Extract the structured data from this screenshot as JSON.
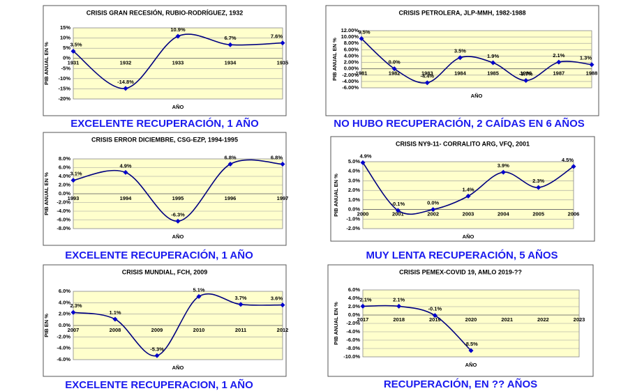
{
  "chart_data": [
    {
      "type": "line",
      "title": "CRISIS GRAN RECESIÓN, RUBIO-RODRÍGUEZ, 1932",
      "ylabel": "PIB ANUAL EN %",
      "xlabel": "AÑO",
      "categories": [
        "1931",
        "1932",
        "1933",
        "1934",
        "1935"
      ],
      "values": [
        3.5,
        -14.8,
        10.9,
        6.7,
        7.6
      ],
      "value_labels": [
        "3.5%",
        "-14.8%",
        "10.9%",
        "6.7%",
        "7.6%"
      ],
      "color": "#000080",
      "background": "#ffffcc",
      "grid": true,
      "ylim": [
        -20,
        15
      ],
      "yticks": [
        {
          "value": 15,
          "label": "15%"
        },
        {
          "value": 10,
          "label": "10%"
        },
        {
          "value": 5,
          "label": "5%"
        },
        {
          "value": 0,
          "label": "0%"
        },
        {
          "value": -5,
          "label": "-5%"
        },
        {
          "value": -10,
          "label": "-10%"
        },
        {
          "value": -15,
          "label": "-15%"
        },
        {
          "value": -20,
          "label": "-20%"
        }
      ],
      "caption": "EXCELENTE RECUPERACIÓN, 1 AÑO"
    },
    {
      "type": "line",
      "title": "CRISIS PETROLERA, JLP-MMH, 1982-1988",
      "ylabel": "PIB ANUAL EN %",
      "xlabel": "AÑO",
      "categories": [
        "1981",
        "1982",
        "1983",
        "1984",
        "1985",
        "1986",
        "1987",
        "1988"
      ],
      "values": [
        9.5,
        0.0,
        -4.4,
        3.5,
        1.9,
        -3.7,
        2.1,
        1.3
      ],
      "value_labels": [
        "9.5%",
        "0.0%",
        "-4.4%",
        "3.5%",
        "1.9%",
        "-3.7%",
        "2.1%",
        "1.3%"
      ],
      "color": "#000080",
      "background": "#ffffcc",
      "grid": true,
      "ylim": [
        -6,
        12
      ],
      "yticks": [
        {
          "value": 12,
          "label": "12.00%"
        },
        {
          "value": 10,
          "label": "10.00%"
        },
        {
          "value": 8,
          "label": "8.00%"
        },
        {
          "value": 6,
          "label": "6.00%"
        },
        {
          "value": 4,
          "label": "4.00%"
        },
        {
          "value": 2,
          "label": "2.00%"
        },
        {
          "value": 0,
          "label": "0.00%"
        },
        {
          "value": -2,
          "label": "-2.00%"
        },
        {
          "value": -4,
          "label": "-4.00%"
        },
        {
          "value": -6,
          "label": "-6.00%"
        }
      ],
      "caption": "NO HUBO RECUPERACIÓN, 2 CAÍDAS EN 6 AÑOS"
    },
    {
      "type": "line",
      "title": "CRISIS ERROR DICIEMBRE, CSG-EZP, 1994-1995",
      "ylabel": "PIB ANUAL EN %",
      "xlabel": "AÑO",
      "categories": [
        "1993",
        "1994",
        "1995",
        "1996",
        "1997"
      ],
      "values": [
        3.1,
        4.9,
        -6.3,
        6.8,
        6.8
      ],
      "value_labels": [
        "3.1%",
        "4.9%",
        "-6.3%",
        "6.8%",
        "6.8%"
      ],
      "color": "#000080",
      "background": "#ffffcc",
      "grid": true,
      "ylim": [
        -8,
        8
      ],
      "yticks": [
        {
          "value": 8,
          "label": "8.0%"
        },
        {
          "value": 6,
          "label": "6.0%"
        },
        {
          "value": 4,
          "label": "4.0%"
        },
        {
          "value": 2,
          "label": "2.0%"
        },
        {
          "value": 0,
          "label": "0.0%"
        },
        {
          "value": -2,
          "label": "-2.0%"
        },
        {
          "value": -4,
          "label": "-4.0%"
        },
        {
          "value": -6,
          "label": "-6.0%"
        },
        {
          "value": -8,
          "label": "-8.0%"
        }
      ],
      "caption": "EXCELENTE RECUPERACIÓN, 1 AÑO"
    },
    {
      "type": "line",
      "title": "CRISIS NY9-11- CORRALITO ARG, VFQ, 2001",
      "ylabel": "PIB ANUAL EN %",
      "xlabel": "AÑO",
      "categories": [
        "2000",
        "2001",
        "2002",
        "2003",
        "2004",
        "2005",
        "2006"
      ],
      "values": [
        4.9,
        -0.1,
        0.0,
        1.4,
        3.9,
        2.3,
        4.5
      ],
      "value_labels": [
        "4.9%",
        "-0.1%",
        "0.0%",
        "1.4%",
        "3.9%",
        "2.3%",
        "4.5%"
      ],
      "color": "#000080",
      "background": "#ffffcc",
      "grid": true,
      "ylim": [
        -2,
        5
      ],
      "yticks": [
        {
          "value": 5,
          "label": "5.0%"
        },
        {
          "value": 4,
          "label": "4.0%"
        },
        {
          "value": 3,
          "label": "3.0%"
        },
        {
          "value": 2,
          "label": "2.0%"
        },
        {
          "value": 1,
          "label": "1.0%"
        },
        {
          "value": 0,
          "label": "0.0%"
        },
        {
          "value": -1,
          "label": "-1.0%"
        },
        {
          "value": -2,
          "label": "-2.0%"
        }
      ],
      "caption": "MUY LENTA RECUPERACIÓN, 5 AÑOS"
    },
    {
      "type": "line",
      "title": "CRISIS MUNDIAL,  FCH, 2009",
      "ylabel": "PIB EN %",
      "xlabel": "AÑO",
      "categories": [
        "2007",
        "2008",
        "2009",
        "2010",
        "2011",
        "2012"
      ],
      "values": [
        2.3,
        1.1,
        -5.3,
        5.1,
        3.7,
        3.6
      ],
      "value_labels": [
        "2.3%",
        "1.1%",
        "-5.3%",
        "5.1%",
        "3.7%",
        "3.6%"
      ],
      "color": "#000080",
      "background": "#ffffcc",
      "grid": true,
      "ylim": [
        -6,
        6
      ],
      "yticks": [
        {
          "value": 6,
          "label": "6.0%"
        },
        {
          "value": 4,
          "label": "4.0%"
        },
        {
          "value": 2,
          "label": "2.0%"
        },
        {
          "value": 0,
          "label": "0.0%"
        },
        {
          "value": -2,
          "label": "-2.0%"
        },
        {
          "value": -4,
          "label": "-4.0%"
        },
        {
          "value": -6,
          "label": "-6.0%"
        }
      ],
      "caption": "EXCELENTE RECUPERACION, 1 AÑO"
    },
    {
      "type": "line",
      "title": "CRISIS PEMEX-COVID 19,  AMLO 2019-??",
      "ylabel": "PIB ANUAL EN %",
      "xlabel": "AÑO",
      "categories": [
        "2017",
        "2018",
        "2019",
        "2020",
        "2021",
        "2022",
        "2023"
      ],
      "values": [
        2.1,
        2.1,
        -0.1,
        -8.5,
        null,
        null,
        null
      ],
      "value_labels": [
        "2.1%",
        "2.1%",
        "-0.1%",
        "-8.5%",
        null,
        null,
        null
      ],
      "color": "#000080",
      "background": "#ffffcc",
      "grid": true,
      "ylim": [
        -10,
        6
      ],
      "yticks": [
        {
          "value": 6,
          "label": "6.0%"
        },
        {
          "value": 4,
          "label": "4.0%"
        },
        {
          "value": 2,
          "label": "2.0%"
        },
        {
          "value": 0,
          "label": "0.0%"
        },
        {
          "value": -2,
          "label": "-2.0%"
        },
        {
          "value": -4,
          "label": "-4.0%"
        },
        {
          "value": -6,
          "label": "-6.0%"
        },
        {
          "value": -8,
          "label": "-8.0%"
        },
        {
          "value": -10,
          "label": "-10.0%"
        }
      ],
      "caption": "RECUPERACIÓN, EN  ?? AÑOS"
    }
  ]
}
